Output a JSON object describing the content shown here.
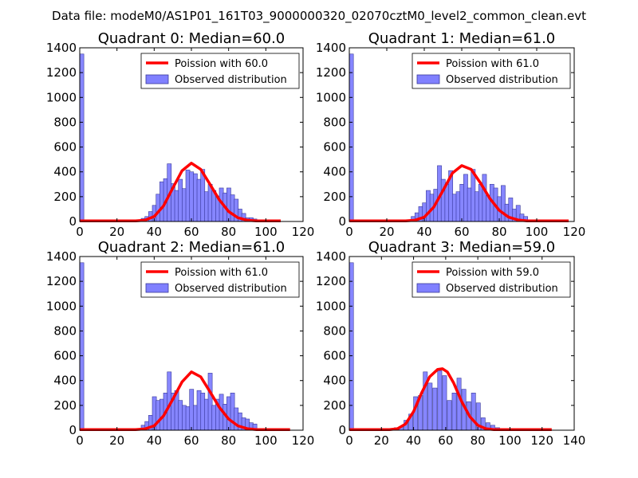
{
  "figure_title": "Data file: modeM0/AS1P01_161T03_9000000320_02070cztM0_level2_common_clean.evt",
  "colors": {
    "poisson": "#ff0000",
    "hist_fill": "#8080ff",
    "hist_edge": "#3a3a9a",
    "axes": "#000000"
  },
  "chart_data": [
    {
      "type": "bar",
      "title": "Quadrant 0: Median=60.0",
      "legend": {
        "position": "top-right",
        "line_label": "Poission with 60.0",
        "bar_label": "Observed distribution"
      },
      "xlim": [
        0,
        120
      ],
      "ylim": [
        0,
        1400
      ],
      "xticks": [
        0,
        20,
        40,
        60,
        80,
        100,
        120
      ],
      "yticks": [
        0,
        200,
        400,
        600,
        800,
        1000,
        1200,
        1400
      ],
      "bin_width": 2.2,
      "bins": [
        [
          0,
          1350
        ],
        [
          33,
          25
        ],
        [
          35,
          40
        ],
        [
          37,
          80
        ],
        [
          39,
          130
        ],
        [
          41,
          220
        ],
        [
          43,
          320
        ],
        [
          45,
          345
        ],
        [
          47,
          465
        ],
        [
          49,
          305
        ],
        [
          51,
          250
        ],
        [
          53,
          340
        ],
        [
          55,
          265
        ],
        [
          57,
          415
        ],
        [
          59,
          400
        ],
        [
          61,
          385
        ],
        [
          63,
          340
        ],
        [
          65,
          420
        ],
        [
          67,
          240
        ],
        [
          69,
          300
        ],
        [
          71,
          250
        ],
        [
          73,
          205
        ],
        [
          75,
          270
        ],
        [
          77,
          230
        ],
        [
          79,
          270
        ],
        [
          81,
          215
        ],
        [
          83,
          180
        ],
        [
          85,
          100
        ],
        [
          87,
          65
        ],
        [
          89,
          30
        ],
        [
          91,
          30
        ],
        [
          93,
          20
        ]
      ],
      "poisson_x": [
        0,
        30,
        35,
        40,
        45,
        50,
        55,
        60,
        65,
        70,
        75,
        80,
        85,
        90,
        95,
        108
      ],
      "poisson_y": [
        5,
        5,
        10,
        40,
        125,
        270,
        410,
        470,
        420,
        300,
        175,
        80,
        30,
        10,
        5,
        5
      ]
    },
    {
      "type": "bar",
      "title": "Quadrant 1: Median=61.0",
      "legend": {
        "position": "top-right",
        "line_label": "Poission with 61.0",
        "bar_label": "Observed distribution"
      },
      "xlim": [
        0,
        120
      ],
      "ylim": [
        0,
        1400
      ],
      "xticks": [
        0,
        20,
        40,
        60,
        80,
        100,
        120
      ],
      "yticks": [
        0,
        200,
        400,
        600,
        800,
        1000,
        1200,
        1400
      ],
      "bin_width": 2.2,
      "bins": [
        [
          0,
          1350
        ],
        [
          33,
          40
        ],
        [
          35,
          70
        ],
        [
          37,
          120
        ],
        [
          39,
          150
        ],
        [
          41,
          250
        ],
        [
          43,
          220
        ],
        [
          45,
          260
        ],
        [
          47,
          450
        ],
        [
          49,
          340
        ],
        [
          51,
          300
        ],
        [
          53,
          410
        ],
        [
          55,
          220
        ],
        [
          57,
          240
        ],
        [
          59,
          300
        ],
        [
          61,
          380
        ],
        [
          63,
          270
        ],
        [
          65,
          420
        ],
        [
          67,
          240
        ],
        [
          69,
          300
        ],
        [
          71,
          380
        ],
        [
          73,
          210
        ],
        [
          75,
          300
        ],
        [
          77,
          270
        ],
        [
          79,
          200
        ],
        [
          81,
          290
        ],
        [
          83,
          140
        ],
        [
          85,
          190
        ],
        [
          87,
          100
        ],
        [
          89,
          130
        ],
        [
          91,
          60
        ],
        [
          93,
          40
        ]
      ],
      "poisson_x": [
        0,
        30,
        35,
        40,
        45,
        50,
        55,
        60,
        65,
        70,
        75,
        80,
        85,
        90,
        95,
        117
      ],
      "poisson_y": [
        5,
        5,
        10,
        35,
        115,
        250,
        390,
        450,
        420,
        310,
        185,
        90,
        35,
        12,
        5,
        5
      ]
    },
    {
      "type": "bar",
      "title": "Quadrant 2: Median=61.0",
      "legend": {
        "position": "top-right",
        "line_label": "Poission with 61.0",
        "bar_label": "Observed distribution"
      },
      "xlim": [
        0,
        120
      ],
      "ylim": [
        0,
        1400
      ],
      "xticks": [
        0,
        20,
        40,
        60,
        80,
        100,
        120
      ],
      "yticks": [
        0,
        200,
        400,
        600,
        800,
        1000,
        1200,
        1400
      ],
      "bin_width": 2.2,
      "bins": [
        [
          0,
          1350
        ],
        [
          33,
          40
        ],
        [
          35,
          70
        ],
        [
          37,
          120
        ],
        [
          39,
          270
        ],
        [
          41,
          240
        ],
        [
          43,
          250
        ],
        [
          45,
          300
        ],
        [
          47,
          470
        ],
        [
          49,
          300
        ],
        [
          51,
          320
        ],
        [
          53,
          240
        ],
        [
          55,
          200
        ],
        [
          57,
          190
        ],
        [
          59,
          330
        ],
        [
          61,
          200
        ],
        [
          63,
          320
        ],
        [
          65,
          300
        ],
        [
          67,
          250
        ],
        [
          69,
          460
        ],
        [
          71,
          200
        ],
        [
          73,
          250
        ],
        [
          75,
          290
        ],
        [
          77,
          210
        ],
        [
          79,
          270
        ],
        [
          81,
          300
        ],
        [
          83,
          180
        ],
        [
          85,
          140
        ],
        [
          87,
          100
        ],
        [
          89,
          90
        ],
        [
          91,
          60
        ],
        [
          93,
          50
        ]
      ],
      "poisson_x": [
        0,
        30,
        35,
        40,
        45,
        50,
        55,
        60,
        65,
        70,
        75,
        80,
        85,
        90,
        95,
        113
      ],
      "poisson_y": [
        5,
        5,
        10,
        35,
        115,
        250,
        390,
        470,
        430,
        310,
        185,
        90,
        35,
        12,
        5,
        5
      ]
    },
    {
      "type": "bar",
      "title": "Quadrant 3: Median=59.0",
      "legend": {
        "position": "top-right",
        "line_label": "Poission with 59.0",
        "bar_label": "Observed distribution"
      },
      "xlim": [
        0,
        140
      ],
      "ylim": [
        0,
        1400
      ],
      "xticks": [
        0,
        20,
        40,
        60,
        80,
        100,
        120,
        140
      ],
      "yticks": [
        0,
        200,
        400,
        600,
        800,
        1000,
        1200,
        1400
      ],
      "bin_width": 2.6,
      "bins": [
        [
          0,
          1350
        ],
        [
          28,
          20
        ],
        [
          31,
          30
        ],
        [
          34,
          80
        ],
        [
          37,
          130
        ],
        [
          40,
          270
        ],
        [
          43,
          280
        ],
        [
          46,
          470
        ],
        [
          49,
          380
        ],
        [
          52,
          340
        ],
        [
          55,
          480
        ],
        [
          58,
          440
        ],
        [
          61,
          240
        ],
        [
          64,
          300
        ],
        [
          67,
          420
        ],
        [
          70,
          330
        ],
        [
          73,
          230
        ],
        [
          76,
          300
        ],
        [
          79,
          220
        ],
        [
          82,
          100
        ],
        [
          85,
          60
        ],
        [
          88,
          40
        ],
        [
          91,
          20
        ]
      ],
      "poisson_x": [
        0,
        25,
        30,
        35,
        40,
        45,
        50,
        55,
        58,
        61,
        65,
        70,
        75,
        80,
        85,
        90,
        126
      ],
      "poisson_y": [
        5,
        5,
        12,
        50,
        150,
        300,
        430,
        490,
        495,
        470,
        380,
        230,
        110,
        40,
        12,
        5,
        5
      ]
    }
  ]
}
